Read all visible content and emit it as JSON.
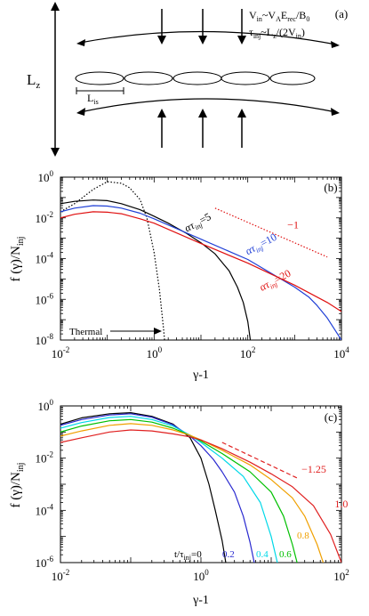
{
  "panel_a": {
    "tag": "(a)",
    "lz_main": "L",
    "lz_sub": "z",
    "lis_main": "L",
    "lis_sub": "is",
    "eq1": {
      "t1": "V",
      "s1": "in",
      "t2": "~V",
      "s2": "A",
      "t3": "E",
      "s3": "rec",
      "t4": "/B",
      "s4": "0"
    },
    "eq2": {
      "t1": "τ",
      "s1": "inj",
      "t2": "~L",
      "s2": "z",
      "t3": "/(2V",
      "s3": "in",
      "t4": ")"
    }
  },
  "chart_data": [
    {
      "panel": "(b)",
      "type": "line",
      "x_scale": "log",
      "y_scale": "log",
      "xlim": [
        0.01,
        10000
      ],
      "ylim": [
        1e-08,
        1
      ],
      "xlabel": "γ-1",
      "ylabel": "f (γ)/N",
      "ylabel_sub": "inj",
      "x_tick_labels": [
        {
          "v": 0.01,
          "base": "10",
          "exp": "-2"
        },
        {
          "v": 1,
          "base": "10",
          "exp": "0"
        },
        {
          "v": 100,
          "base": "10",
          "exp": "2"
        },
        {
          "v": 10000,
          "base": "10",
          "exp": "4"
        }
      ],
      "y_tick_labels": [
        {
          "v": 1,
          "base": "10",
          "exp": "0"
        },
        {
          "v": 0.01,
          "base": "10",
          "exp": "-2"
        },
        {
          "v": 0.0001,
          "base": "10",
          "exp": "-4"
        },
        {
          "v": 1e-06,
          "base": "10",
          "exp": "-6"
        },
        {
          "v": 1e-08,
          "base": "10",
          "exp": "-8"
        }
      ],
      "series": [
        {
          "name": "Thermal",
          "color": "#000000",
          "dash": "dotted",
          "x": [
            0.01,
            0.02,
            0.05,
            0.1,
            0.2,
            0.3,
            0.5,
            0.7,
            1.0,
            1.3,
            1.6,
            2.0
          ],
          "y": [
            0.02,
            0.05,
            0.25,
            0.6,
            0.5,
            0.3,
            0.08,
            0.01,
            0.0002,
            3e-06,
            3e-08,
            1e-10
          ]
        },
        {
          "name": "ατ_inj=5",
          "color": "#000000",
          "dash": "solid",
          "x": [
            0.01,
            0.02,
            0.05,
            0.1,
            0.2,
            0.5,
            1,
            2,
            5,
            10,
            20,
            40,
            60,
            80,
            100,
            130
          ],
          "y": [
            0.05,
            0.065,
            0.075,
            0.07,
            0.05,
            0.025,
            0.012,
            0.0055,
            0.0017,
            0.0006,
            0.00017,
            2.5e-05,
            4e-06,
            7e-07,
            8e-08,
            1e-09
          ]
        },
        {
          "name": "ατ_inj=10",
          "color": "#1f3fd6",
          "dash": "solid",
          "x": [
            0.01,
            0.02,
            0.05,
            0.1,
            0.2,
            0.5,
            1,
            10,
            100,
            1000,
            2000,
            3000,
            5000,
            10000
          ],
          "y": [
            0.02,
            0.03,
            0.04,
            0.038,
            0.03,
            0.017,
            0.009,
            0.0009,
            9e-05,
            4e-06,
            1.3e-06,
            5e-07,
            1.2e-07,
            1e-08
          ]
        },
        {
          "name": "ατ_inj=20",
          "color": "#e01010",
          "dash": "solid",
          "x": [
            0.01,
            0.02,
            0.05,
            0.1,
            0.2,
            0.5,
            1,
            10,
            100,
            1000,
            5000,
            10000
          ],
          "y": [
            0.01,
            0.015,
            0.02,
            0.019,
            0.016,
            0.009,
            0.0055,
            0.00055,
            6e-05,
            5e-06,
            7e-07,
            2.5e-07
          ]
        },
        {
          "name": "-1",
          "color": "#e01010",
          "dash": "dotted",
          "x": [
            20,
            5000
          ],
          "y": [
            0.03,
            0.00012
          ]
        }
      ],
      "annotations": [
        {
          "text": "α",
          "italic": true,
          "sym": "τ",
          "sub": "inj",
          "tail": "=5",
          "x": 5,
          "y": 0.002,
          "color": "#000000",
          "rotate": -28
        },
        {
          "text": "α",
          "italic": true,
          "sym": "τ",
          "sub": "inj",
          "tail": "=10",
          "x": 100,
          "y": 0.00015,
          "color": "#1f3fd6",
          "rotate": -28
        },
        {
          "text": "α",
          "italic": true,
          "sym": "τ",
          "sub": "inj",
          "tail": "=20",
          "x": 200,
          "y": 2.5e-06,
          "color": "#e01010",
          "rotate": -28
        },
        {
          "text": "−1",
          "x": 700,
          "y": 0.003,
          "color": "#e01010"
        }
      ],
      "thermal_label": "Thermal",
      "tag": "(b)"
    },
    {
      "panel": "(c)",
      "type": "line",
      "x_scale": "log",
      "y_scale": "log",
      "xlim": [
        0.01,
        100
      ],
      "ylim": [
        1e-06,
        1
      ],
      "xlabel": "γ-1",
      "ylabel": "f (γ)/N",
      "ylabel_sub": "inj",
      "x_tick_labels": [
        {
          "v": 0.01,
          "base": "10",
          "exp": "-2"
        },
        {
          "v": 1,
          "base": "10",
          "exp": "0"
        },
        {
          "v": 100,
          "base": "10",
          "exp": "2"
        }
      ],
      "y_tick_labels": [
        {
          "v": 1,
          "base": "10",
          "exp": "0"
        },
        {
          "v": 0.01,
          "base": "10",
          "exp": "-2"
        },
        {
          "v": 0.0001,
          "base": "10",
          "exp": "-4"
        },
        {
          "v": 1e-06,
          "base": "10",
          "exp": "-6"
        }
      ],
      "series": [
        {
          "name": "0",
          "color": "#000000",
          "dash": "solid",
          "x": [
            0.01,
            0.02,
            0.05,
            0.1,
            0.2,
            0.4,
            0.7,
            1.0,
            1.3,
            1.6,
            2.0,
            2.6
          ],
          "y": [
            0.2,
            0.35,
            0.5,
            0.55,
            0.4,
            0.2,
            0.06,
            0.01,
            0.001,
            0.0001,
            7e-06,
            1e-07
          ]
        },
        {
          "name": "0.2",
          "color": "#2a2ad0",
          "dash": "solid",
          "x": [
            0.01,
            0.02,
            0.05,
            0.1,
            0.2,
            0.4,
            0.7,
            1.0,
            1.5,
            2.0,
            3.0,
            4.0,
            5.0,
            6.5
          ],
          "y": [
            0.18,
            0.3,
            0.45,
            0.5,
            0.37,
            0.19,
            0.07,
            0.03,
            0.009,
            0.003,
            0.0005,
            6e-05,
            6e-06,
            2e-07
          ]
        },
        {
          "name": "0.4",
          "color": "#00d8e8",
          "dash": "solid",
          "x": [
            0.01,
            0.02,
            0.05,
            0.1,
            0.2,
            0.4,
            0.7,
            1.0,
            2.0,
            4.0,
            7.0,
            10.0,
            13.0
          ],
          "y": [
            0.14,
            0.23,
            0.36,
            0.4,
            0.3,
            0.17,
            0.075,
            0.04,
            0.01,
            0.002,
            0.0002,
            1e-05,
            5e-07
          ]
        },
        {
          "name": "0.6",
          "color": "#00c000",
          "dash": "solid",
          "x": [
            0.01,
            0.02,
            0.05,
            0.1,
            0.2,
            0.4,
            0.7,
            1.0,
            2.0,
            5.0,
            10.0,
            15.0,
            20.0,
            25.0
          ],
          "y": [
            0.1,
            0.17,
            0.27,
            0.3,
            0.24,
            0.14,
            0.075,
            0.045,
            0.015,
            0.003,
            0.0005,
            6e-05,
            5e-06,
            5e-07
          ]
        },
        {
          "name": "0.8",
          "color": "#f0a000",
          "dash": "solid",
          "x": [
            0.01,
            0.02,
            0.05,
            0.1,
            0.2,
            0.4,
            0.7,
            1.0,
            2.0,
            5.0,
            10.0,
            20.0,
            30.0,
            45.0,
            60.0
          ],
          "y": [
            0.07,
            0.11,
            0.18,
            0.21,
            0.18,
            0.12,
            0.075,
            0.05,
            0.02,
            0.0055,
            0.0015,
            0.0003,
            6e-05,
            5e-06,
            5e-07
          ]
        },
        {
          "name": "1.0",
          "color": "#e02020",
          "dash": "solid",
          "x": [
            0.01,
            0.02,
            0.05,
            0.1,
            0.2,
            0.4,
            0.7,
            1.0,
            2.0,
            5.0,
            10.0,
            20.0,
            40.0,
            70.0,
            100.0
          ],
          "y": [
            0.04,
            0.06,
            0.1,
            0.12,
            0.11,
            0.085,
            0.065,
            0.05,
            0.023,
            0.007,
            0.0025,
            0.0008,
            0.00015,
            1.2e-05,
            1e-06
          ]
        },
        {
          "name": "-1.25",
          "color": "#e02020",
          "dash": "dashed",
          "x": [
            2,
            25
          ],
          "y": [
            0.04,
            0.0016
          ]
        }
      ],
      "annotations": [
        {
          "text": "−1.25",
          "x": 27,
          "y": 0.0028,
          "color": "#e02020"
        },
        {
          "text": "1.0",
          "x": 80,
          "y": 0.00013,
          "color": "#e02020"
        }
      ],
      "legend_prefix": "t/τ",
      "legend_prefix_sub": "inj",
      "legend_prefix_tail": "=0",
      "time_labels": [
        {
          "text": "0.2",
          "color": "#2a2ad0"
        },
        {
          "text": "0.4",
          "color": "#00d8e8"
        },
        {
          "text": "0.6",
          "color": "#00c000"
        },
        {
          "text": "0.8",
          "color": "#f0a000"
        }
      ],
      "tag": "(c)"
    }
  ]
}
